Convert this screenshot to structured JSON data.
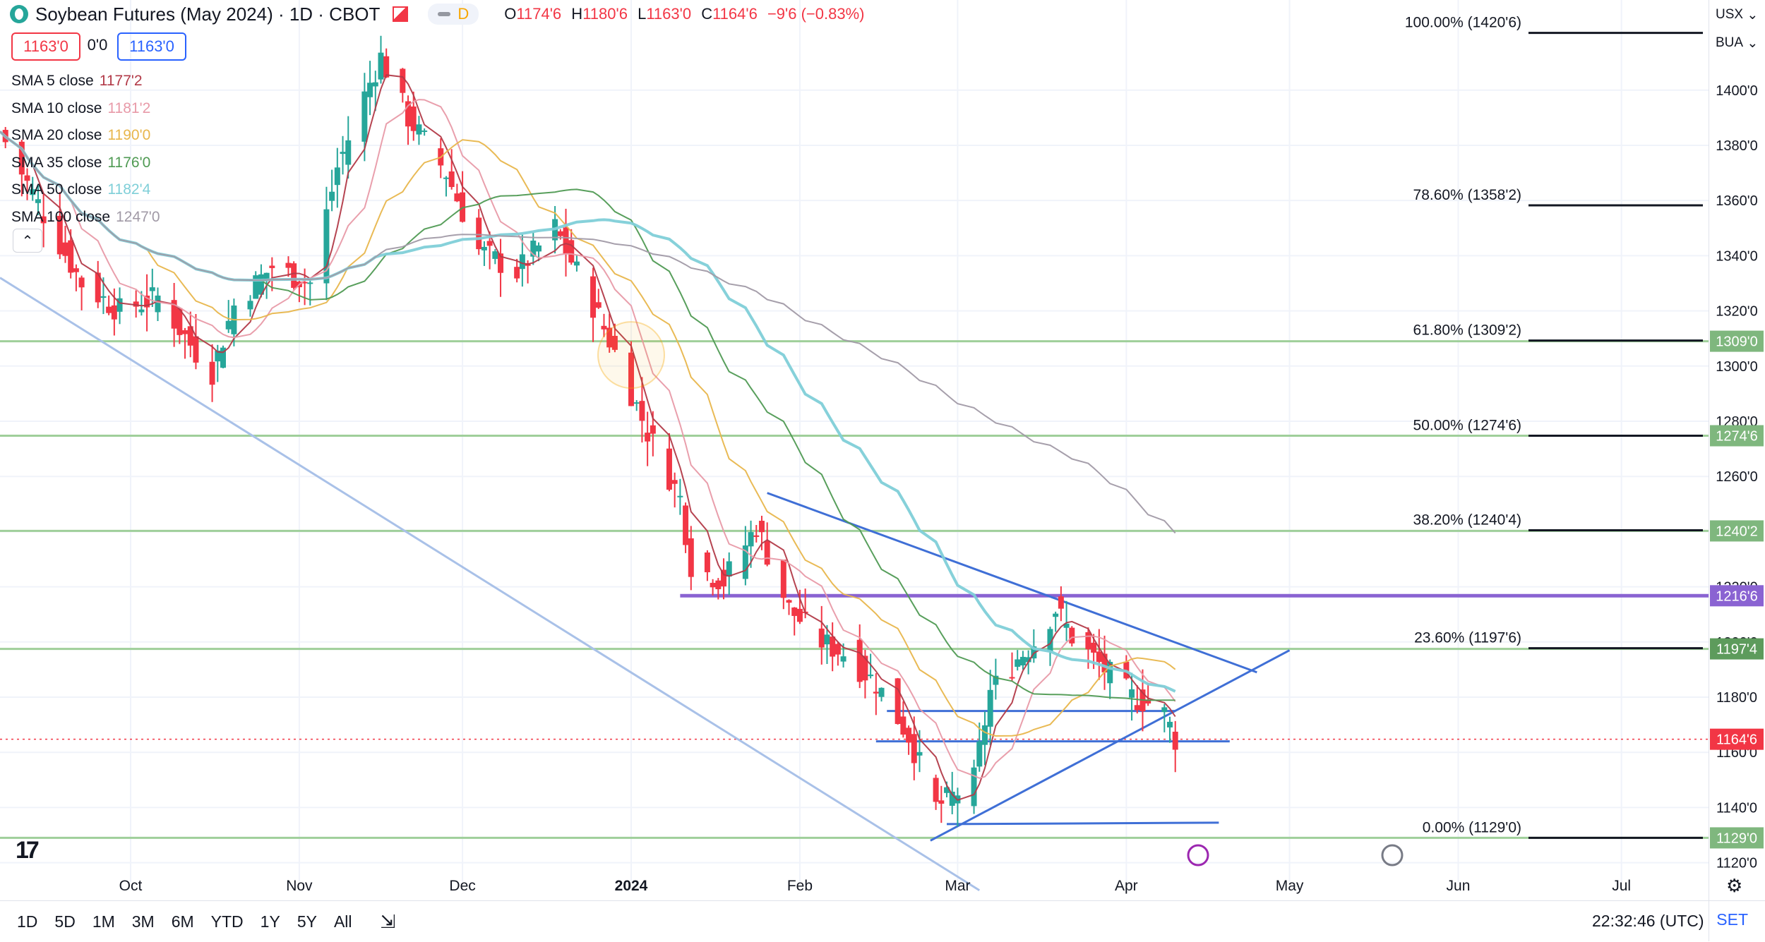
{
  "header": {
    "title": "Soybean Futures (May 2024) · 1D · CBOT",
    "mode_letter": "D",
    "ohlc": [
      {
        "k": "O",
        "v": "1174'6"
      },
      {
        "k": "H",
        "v": "1180'6"
      },
      {
        "k": "L",
        "v": "1163'0"
      },
      {
        "k": "C",
        "v": "1164'6"
      }
    ],
    "change": "−9'6 (−0.83%)"
  },
  "quote": {
    "bid": "1163'0",
    "spread": "0'0",
    "ask": "1163'0"
  },
  "legend": [
    {
      "name": "SMA 5 close",
      "value": "1177'2",
      "color": "#b23a48"
    },
    {
      "name": "SMA 10 close",
      "value": "1181'2",
      "color": "#e89aa8"
    },
    {
      "name": "SMA 20 close",
      "value": "1190'0",
      "color": "#e8b64c"
    },
    {
      "name": "SMA 35 close",
      "value": "1176'0",
      "color": "#4f9a53"
    },
    {
      "name": "SMA 50 close",
      "value": "1182'4",
      "color": "#7fcfd8"
    },
    {
      "name": "SMA 100 close",
      "value": "1247'0",
      "color": "#a19aa6"
    }
  ],
  "collapse_glyph": "⌃",
  "top_right": {
    "currency": "USX",
    "unit": "BUA"
  },
  "chart_data": {
    "type": "candlestick",
    "title": "Soybean Futures (May 2024) · 1D · CBOT",
    "y_axis": {
      "min": 1113,
      "max": 1425,
      "ticks": [
        "1120'0",
        "1140'0",
        "1160'0",
        "1180'0",
        "1200'0",
        "1220'0",
        "1240'0",
        "1260'0",
        "1280'0",
        "1300'0",
        "1320'0",
        "1340'0",
        "1360'0",
        "1380'0",
        "1400'0"
      ],
      "tick_values": [
        1120,
        1140,
        1160,
        1180,
        1200,
        1220,
        1240,
        1260,
        1280,
        1300,
        1320,
        1340,
        1360,
        1380,
        1400
      ]
    },
    "x_axis": {
      "labels": [
        "Oct",
        "Nov",
        "Dec",
        "2024",
        "Feb",
        "Mar",
        "Apr",
        "May",
        "Jun",
        "Jul"
      ],
      "label_dates": [
        "2023-10-01",
        "2023-11-01",
        "2023-12-01",
        "2024-01-01",
        "2024-02-01",
        "2024-03-01",
        "2024-04-01",
        "2024-05-01",
        "2024-06-01",
        "2024-07-01"
      ],
      "range": [
        "2023-09-07",
        "2024-07-17"
      ]
    },
    "candles_approx": [
      {
        "date": "2023-09-07",
        "close": 1385
      },
      {
        "date": "2023-09-15",
        "close": 1355
      },
      {
        "date": "2023-09-22",
        "close": 1330
      },
      {
        "date": "2023-09-29",
        "close": 1320
      },
      {
        "date": "2023-10-06",
        "close": 1325
      },
      {
        "date": "2023-10-13",
        "close": 1305
      },
      {
        "date": "2023-10-16",
        "close": 1298
      },
      {
        "date": "2023-10-20",
        "close": 1322
      },
      {
        "date": "2023-10-27",
        "close": 1336
      },
      {
        "date": "2023-11-03",
        "close": 1330
      },
      {
        "date": "2023-11-08",
        "close": 1372
      },
      {
        "date": "2023-11-13",
        "close": 1398
      },
      {
        "date": "2023-11-16",
        "close": 1412
      },
      {
        "date": "2023-11-21",
        "close": 1390
      },
      {
        "date": "2023-11-28",
        "close": 1370
      },
      {
        "date": "2023-12-04",
        "close": 1342
      },
      {
        "date": "2023-12-11",
        "close": 1334
      },
      {
        "date": "2023-12-18",
        "close": 1350
      },
      {
        "date": "2023-12-26",
        "close": 1318
      },
      {
        "date": "2023-12-29",
        "close": 1305
      },
      {
        "date": "2024-01-04",
        "close": 1276
      },
      {
        "date": "2024-01-10",
        "close": 1252
      },
      {
        "date": "2024-01-12",
        "close": 1228
      },
      {
        "date": "2024-01-18",
        "close": 1222
      },
      {
        "date": "2024-01-24",
        "close": 1242
      },
      {
        "date": "2024-01-30",
        "close": 1212
      },
      {
        "date": "2024-02-05",
        "close": 1200
      },
      {
        "date": "2024-02-09",
        "close": 1196
      },
      {
        "date": "2024-02-15",
        "close": 1185
      },
      {
        "date": "2024-02-21",
        "close": 1166
      },
      {
        "date": "2024-02-26",
        "close": 1140
      },
      {
        "date": "2024-02-29",
        "close": 1144
      },
      {
        "date": "2024-03-04",
        "close": 1150
      },
      {
        "date": "2024-03-07",
        "close": 1182
      },
      {
        "date": "2024-03-12",
        "close": 1194
      },
      {
        "date": "2024-03-15",
        "close": 1200
      },
      {
        "date": "2024-03-19",
        "close": 1212
      },
      {
        "date": "2024-03-22",
        "close": 1202
      },
      {
        "date": "2024-03-27",
        "close": 1192
      },
      {
        "date": "2024-04-02",
        "close": 1180
      },
      {
        "date": "2024-04-05",
        "close": 1178
      },
      {
        "date": "2024-04-08",
        "close": 1174
      },
      {
        "date": "2024-04-10",
        "close": 1164.75
      }
    ],
    "fib_levels": [
      {
        "label": "100.00% (1420'6)",
        "value": 1420.75
      },
      {
        "label": "78.60% (1358'2)",
        "value": 1358.25
      },
      {
        "label": "61.80% (1309'2)",
        "value": 1309.25
      },
      {
        "label": "50.00% (1274'6)",
        "value": 1274.75
      },
      {
        "label": "38.20% (1240'4)",
        "value": 1240.5
      },
      {
        "label": "23.60% (1197'6)",
        "value": 1197.75
      },
      {
        "label": "0.00% (1129'0)",
        "value": 1129
      }
    ],
    "price_tags": [
      {
        "label": "1309'0",
        "value": 1309,
        "color": "#7fb77e"
      },
      {
        "label": "1274'6",
        "value": 1274.75,
        "color": "#7fb77e"
      },
      {
        "label": "1240'2",
        "value": 1240.25,
        "color": "#7fb77e"
      },
      {
        "label": "1216'6",
        "value": 1216.75,
        "color": "#8a63d2"
      },
      {
        "label": "1197'4",
        "value": 1197.5,
        "color": "#5d9b5c"
      },
      {
        "label": "1164'6",
        "value": 1164.75,
        "color": "#f23645"
      },
      {
        "label": "1129'0",
        "value": 1129,
        "color": "#7fb77e"
      }
    ],
    "horizontal_levels": [
      1309,
      1274.75,
      1240.25,
      1216.75,
      1197.5,
      1129
    ],
    "trendlines": [
      {
        "from": [
          "2023-09-07",
          1332
        ],
        "to": [
          "2024-03-05",
          1110
        ],
        "color": "#a9c1e8"
      },
      {
        "from": [
          "2024-01-26",
          1254
        ],
        "to": [
          "2024-04-25",
          1189
        ],
        "color": "#3f6fd6"
      },
      {
        "from": [
          "2024-02-25",
          1128
        ],
        "to": [
          "2024-05-01",
          1197
        ],
        "color": "#3f6fd6"
      },
      {
        "from": [
          "2024-02-17",
          1175
        ],
        "to": [
          "2024-04-10",
          1175
        ],
        "color": "#3f6fd6"
      },
      {
        "from": [
          "2024-02-15",
          1164
        ],
        "to": [
          "2024-04-20",
          1164
        ],
        "color": "#3f6fd6"
      },
      {
        "from": [
          "2024-02-28",
          1134
        ],
        "to": [
          "2024-04-18",
          1134.5
        ],
        "color": "#3f6fd6"
      }
    ]
  },
  "bottom": {
    "timeframes": [
      "1D",
      "5D",
      "1M",
      "3M",
      "6M",
      "YTD",
      "1Y",
      "5Y",
      "All"
    ],
    "clock": "22:32:46 (UTC)",
    "set": "SET",
    "tv_logo": "17"
  }
}
